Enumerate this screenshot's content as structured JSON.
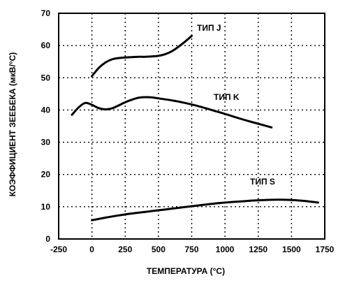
{
  "chart_data": {
    "type": "line",
    "xlabel": "ТЕМПЕРАТУРА (°C)",
    "ylabel": "КОЭФФИЦИЕНТ ЗЕЕБЕКА (мкВ/°C)",
    "xlim": [
      -250,
      1750
    ],
    "ylim": [
      0,
      70
    ],
    "xticks": [
      -250,
      0,
      250,
      500,
      750,
      1000,
      1250,
      1500,
      1750
    ],
    "yticks": [
      0,
      10,
      20,
      30,
      40,
      50,
      60,
      70
    ],
    "grid": true,
    "series": [
      {
        "name": "ТИП J",
        "x": [
          0,
          50,
          100,
          150,
          200,
          250,
          300,
          350,
          400,
          450,
          500,
          550,
          600,
          650,
          700,
          750
        ],
        "y": [
          50.5,
          53.0,
          54.7,
          55.7,
          56.1,
          56.3,
          56.4,
          56.5,
          56.5,
          56.6,
          56.8,
          57.3,
          58.2,
          59.6,
          61.2,
          63.0
        ]
      },
      {
        "name": "ТИП K",
        "x": [
          -150,
          -100,
          -50,
          0,
          50,
          100,
          150,
          200,
          250,
          300,
          350,
          400,
          450,
          500,
          600,
          700,
          800,
          900,
          1000,
          1100,
          1200,
          1350
        ],
        "y": [
          38.5,
          40.8,
          42.2,
          41.6,
          40.6,
          40.2,
          40.5,
          41.4,
          42.4,
          43.2,
          43.8,
          44.0,
          43.9,
          43.6,
          43.0,
          42.2,
          41.2,
          40.0,
          38.8,
          37.5,
          36.3,
          34.6
        ]
      },
      {
        "name": "ТИП S",
        "x": [
          0,
          100,
          200,
          300,
          400,
          500,
          600,
          700,
          800,
          900,
          1000,
          1100,
          1200,
          1300,
          1400,
          1500,
          1600,
          1700
        ],
        "y": [
          5.8,
          6.6,
          7.3,
          7.9,
          8.4,
          8.9,
          9.4,
          9.9,
          10.4,
          10.9,
          11.3,
          11.6,
          11.9,
          12.1,
          12.2,
          12.1,
          11.8,
          11.3
        ]
      }
    ]
  }
}
